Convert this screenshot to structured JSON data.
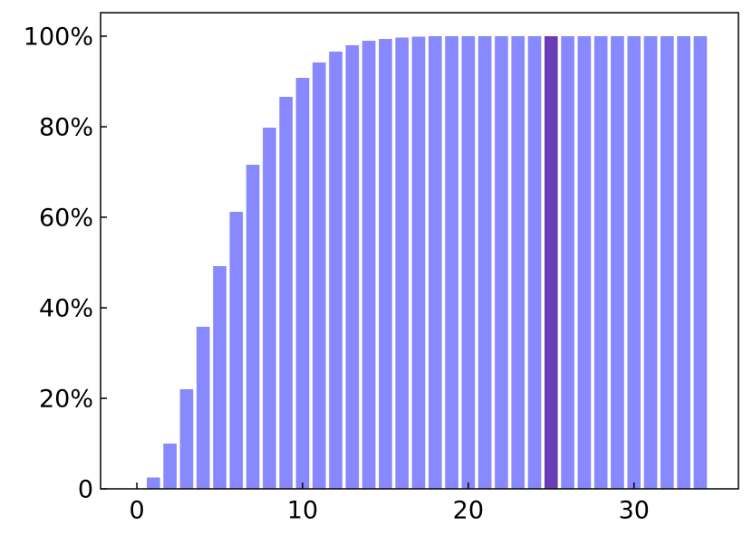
{
  "chart_data": {
    "type": "bar",
    "x": [
      0,
      1,
      2,
      3,
      4,
      5,
      6,
      7,
      8,
      9,
      10,
      11,
      12,
      13,
      14,
      15,
      16,
      17,
      18,
      19,
      20,
      21,
      22,
      23,
      24,
      25,
      26,
      27,
      28,
      29,
      30,
      31,
      32,
      33,
      34
    ],
    "values": [
      0.1,
      2.5,
      10,
      22,
      35.8,
      49.2,
      61.2,
      71.6,
      79.8,
      86.6,
      90.8,
      94.2,
      96.6,
      98,
      99,
      99.4,
      99.7,
      99.9,
      100,
      100,
      100,
      100,
      100,
      100,
      100,
      100,
      100,
      100,
      100,
      100,
      100,
      100,
      100,
      100,
      100
    ],
    "colors": [
      "#8888ff",
      "#8888ff",
      "#8888ff",
      "#8888ff",
      "#8888ff",
      "#8888ff",
      "#8888ff",
      "#8888ff",
      "#8888ff",
      "#8888ff",
      "#8888ff",
      "#8888ff",
      "#8888ff",
      "#8888ff",
      "#8888ff",
      "#8888ff",
      "#8888ff",
      "#8888ff",
      "#8888ff",
      "#8888ff",
      "#8888ff",
      "#8888ff",
      "#8888ff",
      "#8888ff",
      "#8888ff",
      "#6a3db8",
      "#8888ff",
      "#8888ff",
      "#8888ff",
      "#8888ff",
      "#8888ff",
      "#8888ff",
      "#8888ff",
      "#8888ff",
      "#8888ff"
    ],
    "xlim": [
      -2.19,
      36.3
    ],
    "xticks": [
      0,
      10,
      20,
      30
    ],
    "ylim": [
      0,
      105.2
    ],
    "yticks": [
      0,
      {
        "value": 20,
        "label": "20%"
      },
      {
        "value": 40,
        "label": "40%"
      },
      {
        "value": 60,
        "label": "60%"
      },
      {
        "value": 80,
        "label": "80%"
      },
      {
        "value": 100,
        "label": "100%"
      }
    ]
  }
}
